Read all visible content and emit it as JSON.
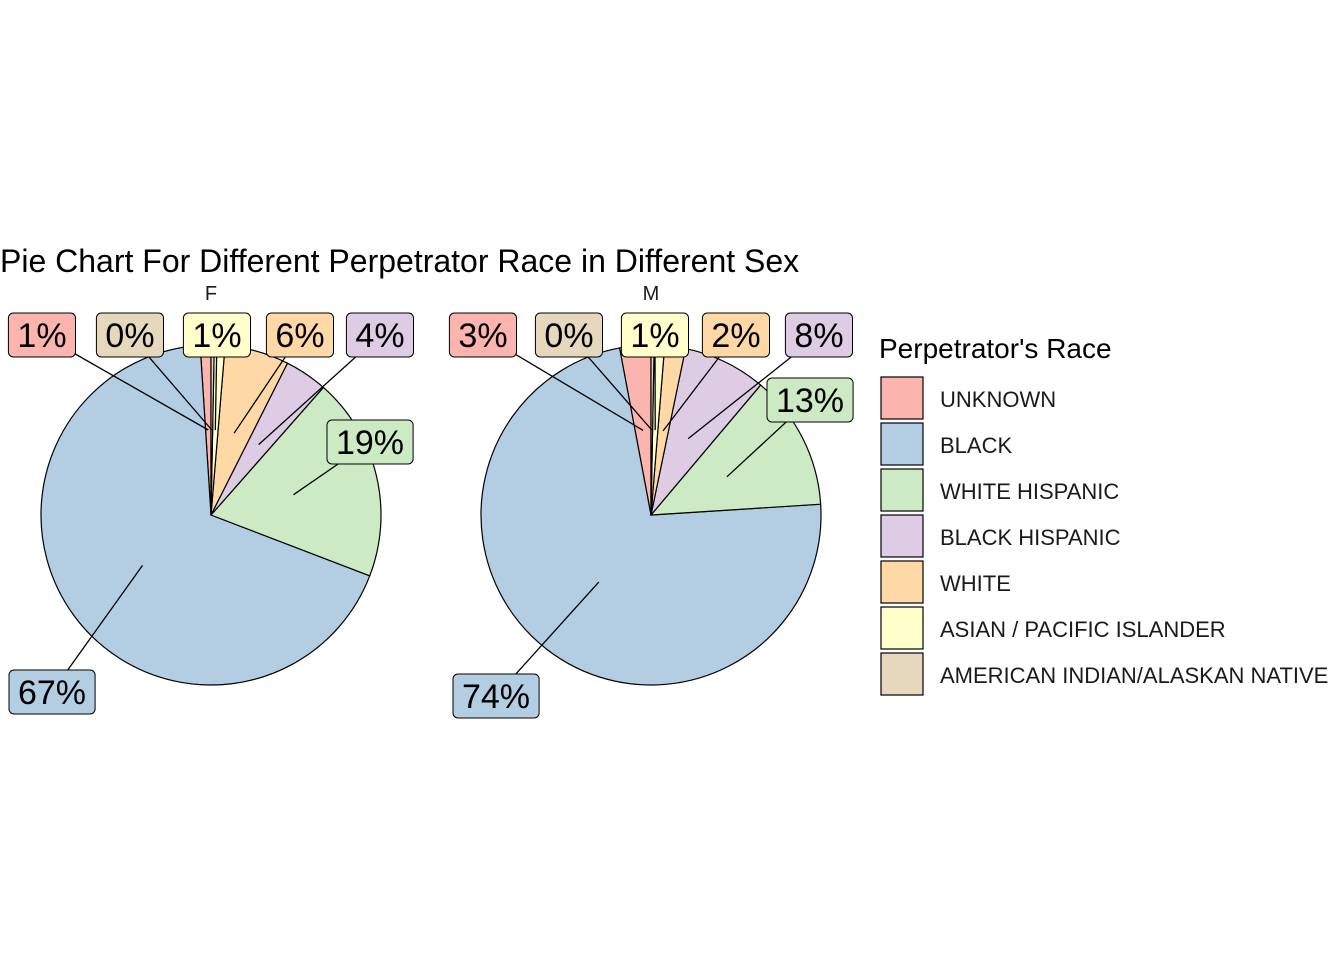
{
  "chart_data": {
    "type": "pie",
    "title": "Pie Chart For Different Perpetrator Race in Different Sex",
    "legend": {
      "title": "Perpetrator's Race",
      "placement": "right",
      "entries": [
        {
          "name": "UNKNOWN",
          "color": "#FBB4AE"
        },
        {
          "name": "BLACK",
          "color": "#B3CDE3"
        },
        {
          "name": "WHITE HISPANIC",
          "color": "#CCEBC5"
        },
        {
          "name": "BLACK HISPANIC",
          "color": "#DECBE4"
        },
        {
          "name": "WHITE",
          "color": "#FED9A6"
        },
        {
          "name": "ASIAN / PACIFIC ISLANDER",
          "color": "#FFFFCC"
        },
        {
          "name": "AMERICAN INDIAN/ALASKAN NATIVE",
          "color": "#E5D8BD"
        }
      ]
    },
    "facets": [
      {
        "name": "F",
        "slices": [
          {
            "category": "UNKNOWN",
            "value": 1,
            "label": "1%"
          },
          {
            "category": "BLACK",
            "value": 67,
            "label": "67%"
          },
          {
            "category": "WHITE HISPANIC",
            "value": 19,
            "label": "19%"
          },
          {
            "category": "BLACK HISPANIC",
            "value": 4,
            "label": "4%"
          },
          {
            "category": "WHITE",
            "value": 6,
            "label": "6%"
          },
          {
            "category": "ASIAN / PACIFIC ISLANDER",
            "value": 1,
            "label": "1%"
          },
          {
            "category": "AMERICAN INDIAN/ALASKAN NATIVE",
            "value": 0.3,
            "label": "0%"
          }
        ]
      },
      {
        "name": "M",
        "slices": [
          {
            "category": "UNKNOWN",
            "value": 3,
            "label": "3%"
          },
          {
            "category": "BLACK",
            "value": 74,
            "label": "74%"
          },
          {
            "category": "WHITE HISPANIC",
            "value": 13,
            "label": "13%"
          },
          {
            "category": "BLACK HISPANIC",
            "value": 8,
            "label": "8%"
          },
          {
            "category": "WHITE",
            "value": 2,
            "label": "2%"
          },
          {
            "category": "ASIAN / PACIFIC ISLANDER",
            "value": 1,
            "label": "1%"
          },
          {
            "category": "AMERICAN INDIAN/ALASKAN NATIVE",
            "value": 0.3,
            "label": "0%"
          }
        ]
      }
    ]
  }
}
